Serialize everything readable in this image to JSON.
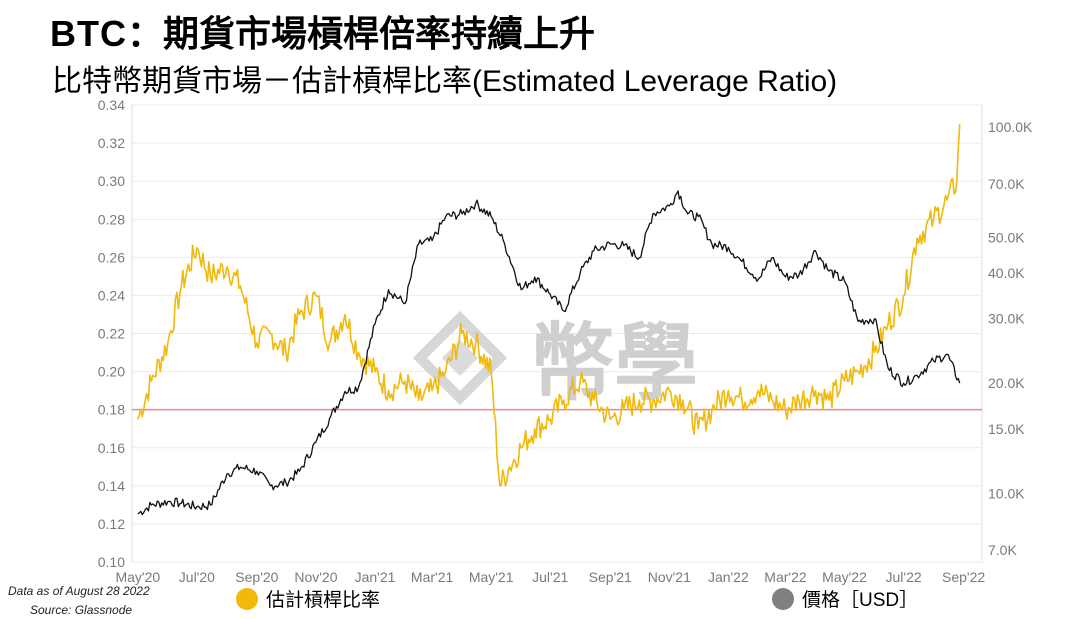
{
  "header": {
    "title_latin": "BTC",
    "title_rest": "：期貨市場槓桿倍率持續上升",
    "subtitle": "比特幣期貨市場－估計槓桿比率(Estimated Leverage Ratio)"
  },
  "footnotes": {
    "date_note": "Data as of August 28 2022",
    "source_note": "Source: Glassnode"
  },
  "watermark": {
    "text": "幣學"
  },
  "legend": {
    "leverage_label": "估計槓桿比率",
    "price_label": "價格［USD］"
  },
  "colors": {
    "leverage": "#F0B90B",
    "price": "#111111",
    "reference_line": "#E88A8A",
    "grid": "#EBEBEB",
    "price_legend_dot": "#808080"
  },
  "chart_data": {
    "type": "line",
    "x_labels": [
      "May'20",
      "Jul'20",
      "Sep'20",
      "Nov'20",
      "Jan'21",
      "Mar'21",
      "May'21",
      "Jul'21",
      "Sep'21",
      "Nov'21",
      "Jan'22",
      "Mar'22",
      "May'22",
      "Jul'22",
      "Sep'22"
    ],
    "y_left": {
      "ticks": [
        0.1,
        0.12,
        0.14,
        0.16,
        0.18,
        0.2,
        0.22,
        0.24,
        0.26,
        0.28,
        0.3,
        0.32,
        0.34
      ],
      "range": [
        0.1,
        0.34
      ]
    },
    "y_right": {
      "scale": "log",
      "ticks": [
        7000,
        10000,
        15000,
        20000,
        30000,
        40000,
        50000,
        70000,
        100000
      ],
      "tick_labels": [
        "7.0K",
        "10.0K",
        "15.0K",
        "20.0K",
        "30.0K",
        "40.0K",
        "50.0K",
        "70.0K",
        "100.0K"
      ],
      "range": [
        6500,
        115000
      ]
    },
    "reference_line": {
      "axis": "left",
      "value": 0.18
    },
    "series": [
      {
        "name": "估計槓桿比率",
        "axis": "left",
        "dates": [
          "2020-05-01",
          "2020-05-15",
          "2020-06-01",
          "2020-06-15",
          "2020-07-01",
          "2020-07-15",
          "2020-08-01",
          "2020-08-15",
          "2020-09-01",
          "2020-09-15",
          "2020-10-01",
          "2020-10-15",
          "2020-11-01",
          "2020-11-15",
          "2020-12-01",
          "2020-12-15",
          "2021-01-01",
          "2021-01-15",
          "2021-02-01",
          "2021-02-15",
          "2021-03-01",
          "2021-03-15",
          "2021-04-01",
          "2021-04-15",
          "2021-05-01",
          "2021-05-10",
          "2021-05-20",
          "2021-06-01",
          "2021-06-15",
          "2021-07-01",
          "2021-07-15",
          "2021-08-01",
          "2021-08-15",
          "2021-09-01",
          "2021-09-15",
          "2021-10-01",
          "2021-10-15",
          "2021-11-01",
          "2021-11-15",
          "2021-12-01",
          "2021-12-15",
          "2022-01-01",
          "2022-01-15",
          "2022-02-01",
          "2022-02-15",
          "2022-03-01",
          "2022-03-15",
          "2022-04-01",
          "2022-04-15",
          "2022-05-01",
          "2022-05-15",
          "2022-06-01",
          "2022-06-15",
          "2022-07-01",
          "2022-07-15",
          "2022-08-01",
          "2022-08-15",
          "2022-08-25",
          "2022-08-28"
        ],
        "values": [
          0.175,
          0.195,
          0.215,
          0.245,
          0.265,
          0.25,
          0.255,
          0.245,
          0.215,
          0.22,
          0.21,
          0.23,
          0.24,
          0.215,
          0.23,
          0.21,
          0.2,
          0.19,
          0.195,
          0.185,
          0.19,
          0.2,
          0.22,
          0.215,
          0.2,
          0.14,
          0.15,
          0.16,
          0.17,
          0.175,
          0.185,
          0.195,
          0.185,
          0.175,
          0.18,
          0.185,
          0.185,
          0.19,
          0.185,
          0.17,
          0.18,
          0.19,
          0.185,
          0.19,
          0.185,
          0.18,
          0.185,
          0.19,
          0.185,
          0.195,
          0.2,
          0.21,
          0.225,
          0.24,
          0.27,
          0.28,
          0.29,
          0.3,
          0.33
        ]
      },
      {
        "name": "價格［USD］",
        "axis": "right",
        "dates": [
          "2020-05-01",
          "2020-05-15",
          "2020-06-01",
          "2020-06-15",
          "2020-07-01",
          "2020-07-15",
          "2020-08-01",
          "2020-08-15",
          "2020-09-01",
          "2020-09-15",
          "2020-10-01",
          "2020-10-15",
          "2020-11-01",
          "2020-11-15",
          "2020-12-01",
          "2020-12-15",
          "2021-01-01",
          "2021-01-15",
          "2021-02-01",
          "2021-02-15",
          "2021-03-01",
          "2021-03-15",
          "2021-04-01",
          "2021-04-15",
          "2021-05-01",
          "2021-05-15",
          "2021-06-01",
          "2021-06-15",
          "2021-07-01",
          "2021-07-15",
          "2021-08-01",
          "2021-08-15",
          "2021-09-01",
          "2021-09-15",
          "2021-10-01",
          "2021-10-15",
          "2021-11-01",
          "2021-11-10",
          "2021-11-20",
          "2021-12-01",
          "2021-12-15",
          "2022-01-01",
          "2022-01-15",
          "2022-02-01",
          "2022-02-15",
          "2022-03-01",
          "2022-03-15",
          "2022-04-01",
          "2022-04-15",
          "2022-05-01",
          "2022-05-15",
          "2022-06-01",
          "2022-06-15",
          "2022-07-01",
          "2022-07-15",
          "2022-08-01",
          "2022-08-15",
          "2022-08-28"
        ],
        "values": [
          8800,
          9300,
          9500,
          9400,
          9200,
          9300,
          11300,
          11800,
          11500,
          10500,
          10700,
          11500,
          13800,
          16000,
          19000,
          19500,
          29000,
          36000,
          33000,
          48000,
          49000,
          57000,
          58000,
          62000,
          57000,
          48000,
          36000,
          39000,
          35000,
          31500,
          40000,
          46000,
          48000,
          47500,
          44000,
          58000,
          61000,
          67000,
          58000,
          57000,
          48000,
          47000,
          43000,
          38500,
          44000,
          39000,
          39500,
          46000,
          40500,
          38000,
          29500,
          30000,
          22000,
          20000,
          21000,
          23000,
          24000,
          20000
        ]
      }
    ]
  }
}
